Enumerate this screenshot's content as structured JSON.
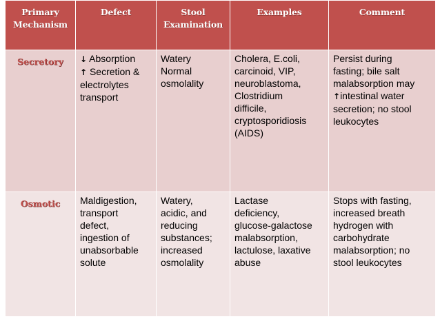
{
  "headers": {
    "mechanism": [
      "Primary",
      "Mechanism"
    ],
    "defect": "Defect",
    "stool": [
      "Stool",
      "Examination"
    ],
    "examples": "Examples",
    "comment": "Comment"
  },
  "rows": [
    {
      "mechanism": "Secretory",
      "defect": [
        {
          "arrow": "↓",
          "text": " Absorption"
        },
        {
          "arrow": "↑",
          "text": " Secretion &"
        },
        {
          "arrow": "",
          "text": "electrolytes"
        },
        {
          "arrow": "",
          "text": "transport"
        }
      ],
      "stool": [
        "Watery",
        "Normal",
        "osmolality"
      ],
      "examples": [
        "Cholera, E.coli,",
        "carcinoid, VIP,",
        "neuroblastoma,",
        "Clostridium",
        "difficile,",
        "cryptosporidiosis",
        "(AIDS)"
      ],
      "comment": [
        {
          "arrow": "",
          "text": "Persist during"
        },
        {
          "arrow": "",
          "text": "fasting; bile salt"
        },
        {
          "arrow": "",
          "text": "malabsorption may"
        },
        {
          "arrow": "↑",
          "text": "intestinal water"
        },
        {
          "arrow": "",
          "text": "secretion; no stool"
        },
        {
          "arrow": "",
          "text": "leukocytes"
        }
      ]
    },
    {
      "mechanism": "Osmotic",
      "defect": [
        {
          "arrow": "",
          "text": "Maldigestion,"
        },
        {
          "arrow": "",
          "text": "transport"
        },
        {
          "arrow": "",
          "text": "defect,"
        },
        {
          "arrow": "",
          "text": "ingestion of"
        },
        {
          "arrow": "",
          "text": "unabsorbable"
        },
        {
          "arrow": "",
          "text": "solute"
        }
      ],
      "stool": [
        "Watery,",
        "acidic, and",
        "reducing",
        "substances;",
        "increased",
        "osmolality"
      ],
      "examples": [
        "Lactase",
        "deficiency,",
        "glucose-galactose",
        "malabsorption,",
        "lactulose, laxative",
        "abuse"
      ],
      "comment": [
        {
          "arrow": "",
          "text": "Stops with fasting,"
        },
        {
          "arrow": "",
          "text": "increased breath"
        },
        {
          "arrow": "",
          "text": "hydrogen with"
        },
        {
          "arrow": "",
          "text": "carbohydrate"
        },
        {
          "arrow": "",
          "text": "malabsorption; no"
        },
        {
          "arrow": "",
          "text": "stool leukocytes"
        }
      ]
    }
  ]
}
